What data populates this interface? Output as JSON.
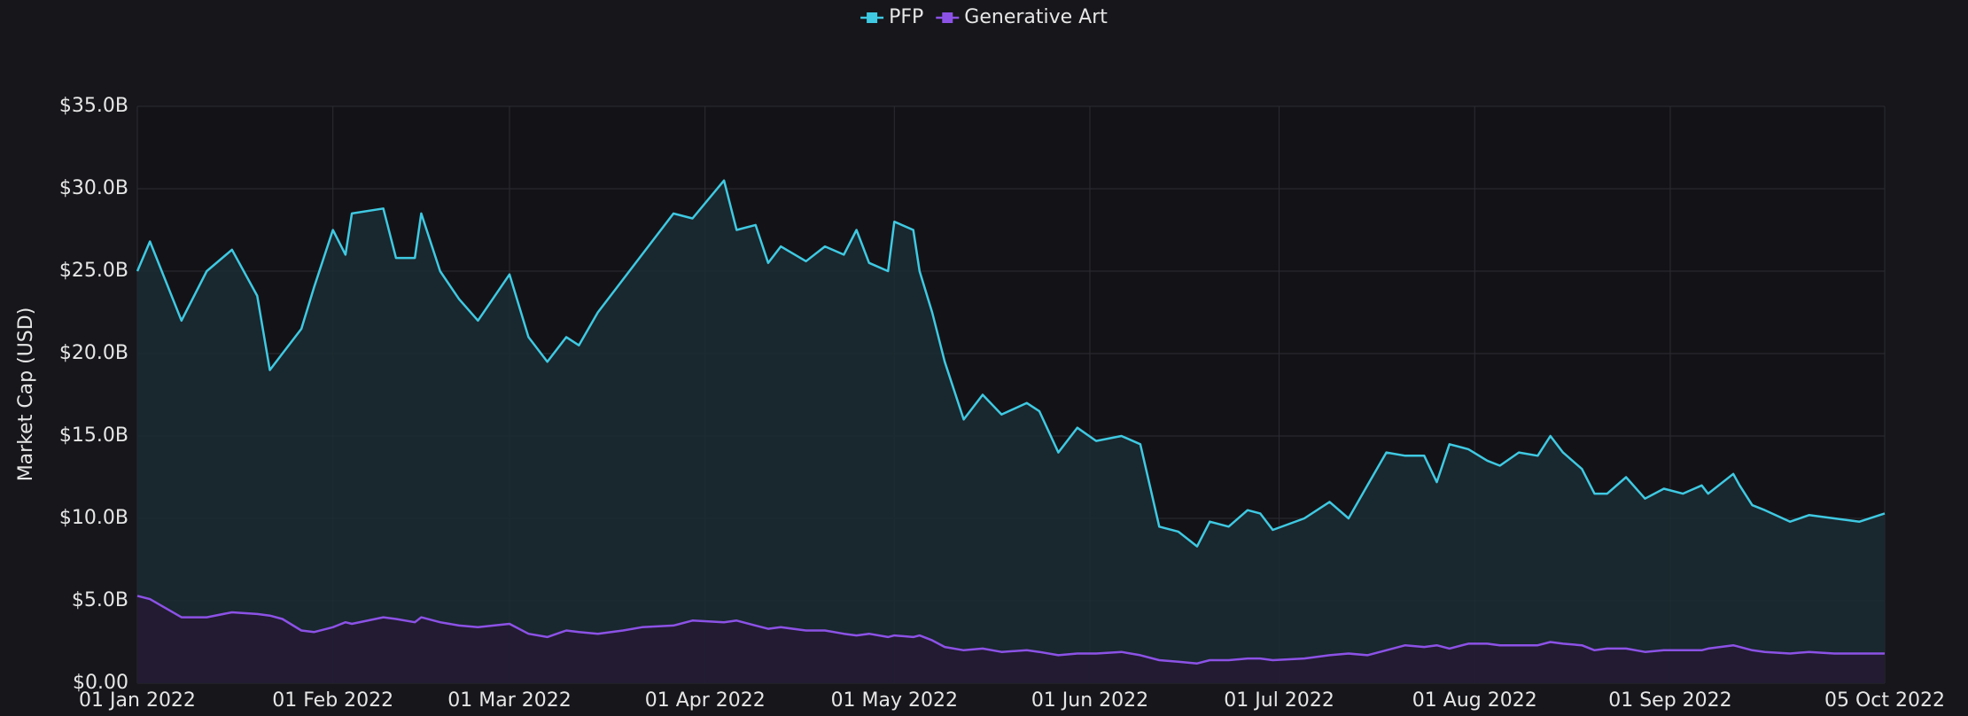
{
  "chart_data": {
    "type": "area",
    "y_label": "Market Cap (USD)",
    "legend": "top",
    "grid": true,
    "x": [
      "2022-01-01",
      "2022-01-03",
      "2022-01-08",
      "2022-01-12",
      "2022-01-16",
      "2022-01-20",
      "2022-01-22",
      "2022-01-24",
      "2022-01-27",
      "2022-01-29",
      "2022-02-01",
      "2022-02-03",
      "2022-02-04",
      "2022-02-09",
      "2022-02-11",
      "2022-02-14",
      "2022-02-15",
      "2022-02-18",
      "2022-02-21",
      "2022-02-24",
      "2022-03-01",
      "2022-03-04",
      "2022-03-07",
      "2022-03-10",
      "2022-03-12",
      "2022-03-15",
      "2022-03-19",
      "2022-03-22",
      "2022-03-27",
      "2022-03-30",
      "2022-04-04",
      "2022-04-06",
      "2022-04-09",
      "2022-04-11",
      "2022-04-13",
      "2022-04-17",
      "2022-04-20",
      "2022-04-23",
      "2022-04-25",
      "2022-04-27",
      "2022-04-30",
      "2022-05-01",
      "2022-05-04",
      "2022-05-05",
      "2022-05-07",
      "2022-05-09",
      "2022-05-12",
      "2022-05-15",
      "2022-05-18",
      "2022-05-22",
      "2022-05-24",
      "2022-05-27",
      "2022-05-30",
      "2022-06-02",
      "2022-06-06",
      "2022-06-09",
      "2022-06-12",
      "2022-06-15",
      "2022-06-18",
      "2022-06-20",
      "2022-06-23",
      "2022-06-26",
      "2022-06-28",
      "2022-06-30",
      "2022-07-05",
      "2022-07-09",
      "2022-07-12",
      "2022-07-15",
      "2022-07-18",
      "2022-07-21",
      "2022-07-24",
      "2022-07-26",
      "2022-07-28",
      "2022-07-31",
      "2022-08-03",
      "2022-08-05",
      "2022-08-08",
      "2022-08-11",
      "2022-08-13",
      "2022-08-15",
      "2022-08-18",
      "2022-08-20",
      "2022-08-22",
      "2022-08-25",
      "2022-08-28",
      "2022-08-31",
      "2022-09-03",
      "2022-09-06",
      "2022-09-07",
      "2022-09-11",
      "2022-09-12",
      "2022-09-14",
      "2022-09-16",
      "2022-09-20",
      "2022-09-23",
      "2022-09-27",
      "2022-10-01",
      "2022-10-05"
    ],
    "series": [
      {
        "name": "PFP",
        "color": "#3fc9e2",
        "fill": "#1b2b33",
        "values": [
          25.0,
          26.8,
          22.0,
          25.0,
          26.3,
          23.5,
          19.0,
          20.0,
          21.5,
          24.0,
          27.5,
          26.0,
          28.5,
          28.8,
          25.8,
          25.8,
          28.5,
          25.0,
          23.3,
          22.0,
          24.8,
          21.0,
          19.5,
          21.0,
          20.5,
          22.5,
          24.5,
          26.0,
          28.5,
          28.2,
          30.5,
          27.5,
          27.8,
          25.5,
          26.5,
          25.6,
          26.5,
          26.0,
          27.5,
          25.5,
          25.0,
          28.0,
          27.5,
          25.0,
          22.5,
          19.5,
          16.0,
          17.5,
          16.3,
          17.0,
          16.5,
          14.0,
          15.5,
          14.7,
          15.0,
          14.5,
          9.5,
          9.2,
          8.3,
          9.8,
          9.5,
          10.5,
          10.3,
          9.3,
          10.0,
          11.0,
          10.0,
          12.0,
          14.0,
          13.8,
          13.8,
          12.2,
          14.5,
          14.2,
          13.5,
          13.2,
          14.0,
          13.8,
          15.0,
          14.0,
          13.0,
          11.5,
          11.5,
          12.5,
          11.2,
          11.8,
          11.5,
          12.0,
          11.5,
          12.7,
          12.0,
          10.8,
          10.5,
          9.8,
          10.2,
          10.0,
          9.8,
          10.3
        ]
      },
      {
        "name": "Generative Art",
        "color": "#8c52e6",
        "fill": "#241a33",
        "values": [
          5.3,
          5.1,
          4.0,
          4.0,
          4.3,
          4.2,
          4.1,
          3.9,
          3.2,
          3.1,
          3.4,
          3.7,
          3.6,
          4.0,
          3.9,
          3.7,
          4.0,
          3.7,
          3.5,
          3.4,
          3.6,
          3.0,
          2.8,
          3.2,
          3.1,
          3.0,
          3.2,
          3.4,
          3.5,
          3.8,
          3.7,
          3.8,
          3.5,
          3.3,
          3.4,
          3.2,
          3.2,
          3.0,
          2.9,
          3.0,
          2.8,
          2.9,
          2.8,
          2.9,
          2.6,
          2.2,
          2.0,
          2.1,
          1.9,
          2.0,
          1.9,
          1.7,
          1.8,
          1.8,
          1.9,
          1.7,
          1.4,
          1.3,
          1.2,
          1.4,
          1.4,
          1.5,
          1.5,
          1.4,
          1.5,
          1.7,
          1.8,
          1.7,
          2.0,
          2.3,
          2.2,
          2.3,
          2.1,
          2.4,
          2.4,
          2.3,
          2.3,
          2.3,
          2.5,
          2.4,
          2.3,
          2.0,
          2.1,
          2.1,
          1.9,
          2.0,
          2.0,
          2.0,
          2.1,
          2.3,
          2.2,
          2.0,
          1.9,
          1.8,
          1.9,
          1.8,
          1.8,
          1.8
        ]
      }
    ],
    "xlim": [
      "2022-01-01",
      "2022-10-05"
    ],
    "xticks": [
      {
        "value": "2022-01-01",
        "label": "01 Jan 2022"
      },
      {
        "value": "2022-02-01",
        "label": "01 Feb 2022"
      },
      {
        "value": "2022-03-01",
        "label": "01 Mar 2022"
      },
      {
        "value": "2022-04-01",
        "label": "01 Apr 2022"
      },
      {
        "value": "2022-05-01",
        "label": "01 May 2022"
      },
      {
        "value": "2022-06-01",
        "label": "01 Jun 2022"
      },
      {
        "value": "2022-07-01",
        "label": "01 Jul 2022"
      },
      {
        "value": "2022-08-01",
        "label": "01 Aug 2022"
      },
      {
        "value": "2022-09-01",
        "label": "01 Sep 2022"
      },
      {
        "value": "2022-10-05",
        "label": "05 Oct 2022"
      }
    ],
    "ylim": [
      0,
      35
    ],
    "yticks": [
      {
        "value": 0,
        "label": "$0.00"
      },
      {
        "value": 5,
        "label": "$5.0B"
      },
      {
        "value": 10,
        "label": "$10.0B"
      },
      {
        "value": 15,
        "label": "$15.0B"
      },
      {
        "value": 20,
        "label": "$20.0B"
      },
      {
        "value": 25,
        "label": "$25.0B"
      },
      {
        "value": 30,
        "label": "$30.0B"
      },
      {
        "value": 35,
        "label": "$35.0B"
      }
    ]
  }
}
